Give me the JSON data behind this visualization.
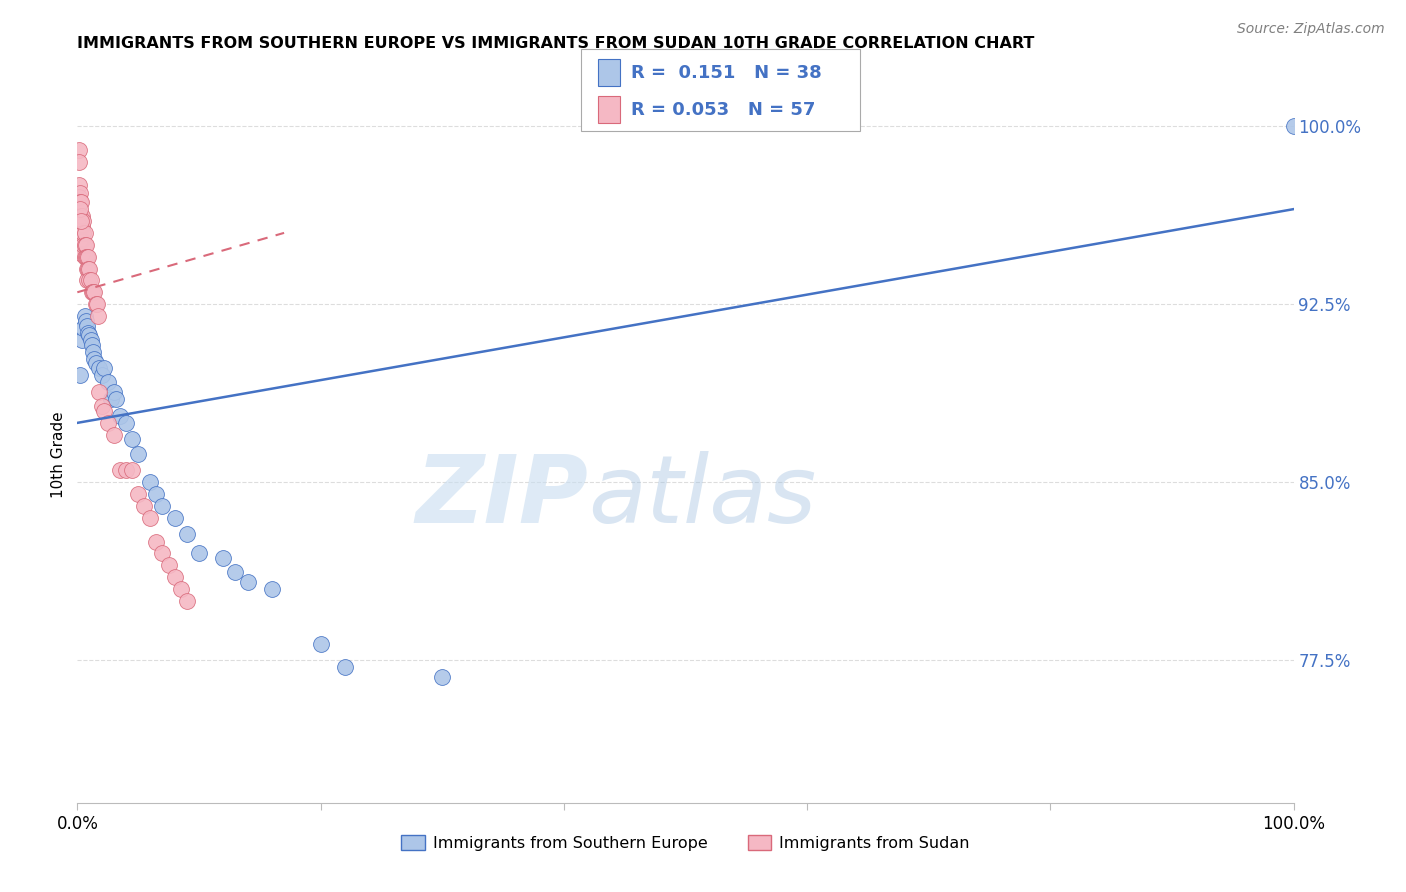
{
  "title": "IMMIGRANTS FROM SOUTHERN EUROPE VS IMMIGRANTS FROM SUDAN 10TH GRADE CORRELATION CHART",
  "source": "Source: ZipAtlas.com",
  "ylabel": "10th Grade",
  "legend_label_1": "Immigrants from Southern Europe",
  "legend_label_2": "Immigrants from Sudan",
  "R1": 0.151,
  "N1": 38,
  "R2": 0.053,
  "N2": 57,
  "color1": "#adc6e8",
  "color2": "#f5b8c4",
  "line_color1": "#4472c4",
  "line_color2": "#d9697a",
  "xlim": [
    0.0,
    1.0
  ],
  "ylim": [
    0.715,
    1.008
  ],
  "yticks": [
    0.775,
    0.85,
    0.925,
    1.0
  ],
  "ytick_labels": [
    "77.5%",
    "85.0%",
    "92.5%",
    "100.0%"
  ],
  "xticks": [
    0.0,
    0.2,
    0.4,
    0.6,
    0.8,
    1.0
  ],
  "blue_x": [
    0.002,
    0.004,
    0.005,
    0.006,
    0.007,
    0.008,
    0.009,
    0.01,
    0.011,
    0.012,
    0.013,
    0.014,
    0.015,
    0.018,
    0.02,
    0.022,
    0.025,
    0.028,
    0.03,
    0.032,
    0.035,
    0.04,
    0.045,
    0.05,
    0.06,
    0.065,
    0.07,
    0.08,
    0.09,
    0.1,
    0.12,
    0.13,
    0.14,
    0.16,
    0.2,
    0.22,
    0.3,
    1.0
  ],
  "blue_y": [
    0.895,
    0.91,
    0.915,
    0.92,
    0.918,
    0.916,
    0.913,
    0.912,
    0.91,
    0.908,
    0.905,
    0.902,
    0.9,
    0.898,
    0.895,
    0.898,
    0.892,
    0.885,
    0.888,
    0.885,
    0.878,
    0.875,
    0.868,
    0.862,
    0.85,
    0.845,
    0.84,
    0.835,
    0.828,
    0.82,
    0.818,
    0.812,
    0.808,
    0.805,
    0.782,
    0.772,
    0.768,
    1.0
  ],
  "pink_x": [
    0.001,
    0.001,
    0.001,
    0.001,
    0.002,
    0.002,
    0.002,
    0.002,
    0.003,
    0.003,
    0.003,
    0.003,
    0.004,
    0.004,
    0.004,
    0.004,
    0.005,
    0.005,
    0.005,
    0.006,
    0.006,
    0.006,
    0.007,
    0.007,
    0.008,
    0.008,
    0.008,
    0.009,
    0.009,
    0.01,
    0.01,
    0.011,
    0.012,
    0.013,
    0.014,
    0.015,
    0.016,
    0.017,
    0.018,
    0.02,
    0.022,
    0.025,
    0.03,
    0.035,
    0.04,
    0.045,
    0.05,
    0.055,
    0.06,
    0.065,
    0.07,
    0.075,
    0.08,
    0.085,
    0.09,
    0.002,
    0.003
  ],
  "pink_y": [
    0.99,
    0.985,
    0.975,
    0.97,
    0.972,
    0.968,
    0.958,
    0.952,
    0.968,
    0.962,
    0.958,
    0.952,
    0.962,
    0.958,
    0.952,
    0.946,
    0.96,
    0.955,
    0.95,
    0.955,
    0.95,
    0.945,
    0.95,
    0.945,
    0.945,
    0.94,
    0.935,
    0.945,
    0.94,
    0.94,
    0.935,
    0.935,
    0.93,
    0.93,
    0.93,
    0.925,
    0.925,
    0.92,
    0.888,
    0.882,
    0.88,
    0.875,
    0.87,
    0.855,
    0.855,
    0.855,
    0.845,
    0.84,
    0.835,
    0.825,
    0.82,
    0.815,
    0.81,
    0.805,
    0.8,
    0.965,
    0.96
  ],
  "watermark_zip": "ZIP",
  "watermark_atlas": "atlas",
  "background_color": "#ffffff",
  "grid_color": "#dddddd"
}
